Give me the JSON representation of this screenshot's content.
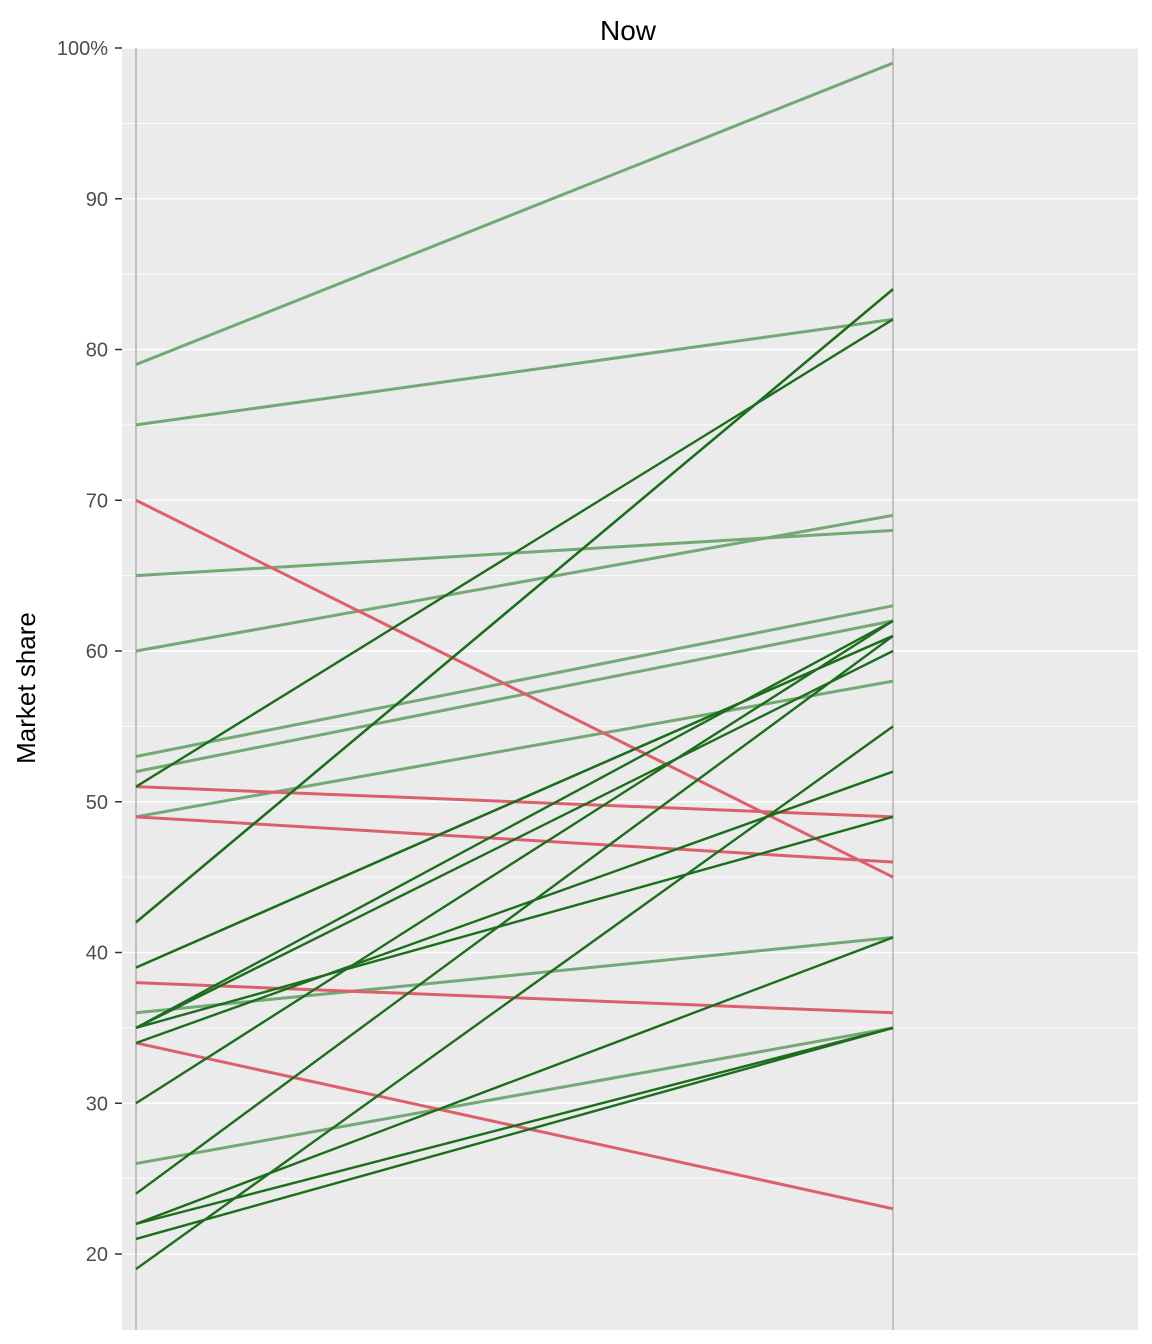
{
  "chart_data": {
    "type": "line",
    "title": "Now",
    "ylabel": "Market share",
    "y_ticks": [
      "100%",
      "90",
      "80",
      "70",
      "60",
      "50",
      "40",
      "30",
      "20"
    ],
    "y_tick_values": [
      100,
      90,
      80,
      70,
      60,
      50,
      40,
      30,
      20
    ],
    "ylim": [
      15,
      100
    ],
    "grid": true,
    "colors": {
      "increase_strong": "#1b6e1b",
      "increase_mild": "#74a874",
      "decrease": "#dd5f6b",
      "panel": "#ebebeb",
      "gridline": "#ffffff",
      "axis_line": "#b3b3b3"
    },
    "series": [
      {
        "start": 79,
        "end": 99,
        "group": "increase_mild"
      },
      {
        "start": 75,
        "end": 82,
        "group": "increase_mild"
      },
      {
        "start": 65,
        "end": 68,
        "group": "increase_mild"
      },
      {
        "start": 60,
        "end": 69,
        "group": "increase_mild"
      },
      {
        "start": 53,
        "end": 63,
        "group": "increase_mild"
      },
      {
        "start": 52,
        "end": 62,
        "group": "increase_mild"
      },
      {
        "start": 49,
        "end": 58,
        "group": "increase_mild"
      },
      {
        "start": 36,
        "end": 41,
        "group": "increase_mild"
      },
      {
        "start": 26,
        "end": 35,
        "group": "increase_mild"
      },
      {
        "start": 70,
        "end": 45,
        "group": "decrease"
      },
      {
        "start": 51,
        "end": 49,
        "group": "decrease"
      },
      {
        "start": 49,
        "end": 46,
        "group": "decrease"
      },
      {
        "start": 38,
        "end": 36,
        "group": "decrease"
      },
      {
        "start": 34,
        "end": 23,
        "group": "decrease"
      },
      {
        "start": 51,
        "end": 82,
        "group": "increase_strong"
      },
      {
        "start": 42,
        "end": 84,
        "group": "increase_strong"
      },
      {
        "start": 42,
        "end": 84,
        "group": "increase_strong"
      },
      {
        "start": 39,
        "end": 61,
        "group": "increase_strong"
      },
      {
        "start": 39,
        "end": 61,
        "group": "increase_strong"
      },
      {
        "start": 35,
        "end": 62,
        "group": "increase_strong"
      },
      {
        "start": 35,
        "end": 60,
        "group": "increase_strong"
      },
      {
        "start": 35,
        "end": 49,
        "group": "increase_strong"
      },
      {
        "start": 34,
        "end": 52,
        "group": "increase_strong"
      },
      {
        "start": 30,
        "end": 62,
        "group": "increase_strong"
      },
      {
        "start": 24,
        "end": 61,
        "group": "increase_strong"
      },
      {
        "start": 22,
        "end": 41,
        "group": "increase_strong"
      },
      {
        "start": 22,
        "end": 35,
        "group": "increase_strong"
      },
      {
        "start": 21,
        "end": 35,
        "group": "increase_strong"
      },
      {
        "start": 19,
        "end": 55,
        "group": "increase_strong"
      }
    ]
  }
}
